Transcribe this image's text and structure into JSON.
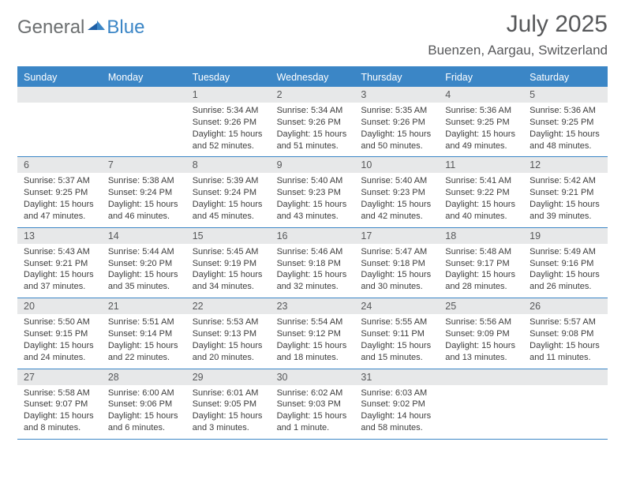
{
  "logo": {
    "text1": "General",
    "text2": "Blue"
  },
  "title": "July 2025",
  "location": "Buenzen, Aargau, Switzerland",
  "colors": {
    "header_bg": "#3b86c6",
    "header_text": "#ffffff",
    "band_bg": "#e7e8e9",
    "band_text": "#57585a",
    "body_text": "#3d3d3d",
    "rule": "#3b86c6",
    "title_text": "#57585a",
    "logo_gray": "#6c6f70",
    "logo_blue": "#3b86c6",
    "page_bg": "#ffffff"
  },
  "typography": {
    "title_fontsize": 30,
    "location_fontsize": 17,
    "header_fontsize": 12.5,
    "daynum_fontsize": 12.5,
    "body_fontsize": 11
  },
  "weekdays": [
    "Sunday",
    "Monday",
    "Tuesday",
    "Wednesday",
    "Thursday",
    "Friday",
    "Saturday"
  ],
  "weeks": [
    [
      {
        "n": "",
        "lines": []
      },
      {
        "n": "",
        "lines": []
      },
      {
        "n": "1",
        "lines": [
          "Sunrise: 5:34 AM",
          "Sunset: 9:26 PM",
          "Daylight: 15 hours",
          "and 52 minutes."
        ]
      },
      {
        "n": "2",
        "lines": [
          "Sunrise: 5:34 AM",
          "Sunset: 9:26 PM",
          "Daylight: 15 hours",
          "and 51 minutes."
        ]
      },
      {
        "n": "3",
        "lines": [
          "Sunrise: 5:35 AM",
          "Sunset: 9:26 PM",
          "Daylight: 15 hours",
          "and 50 minutes."
        ]
      },
      {
        "n": "4",
        "lines": [
          "Sunrise: 5:36 AM",
          "Sunset: 9:25 PM",
          "Daylight: 15 hours",
          "and 49 minutes."
        ]
      },
      {
        "n": "5",
        "lines": [
          "Sunrise: 5:36 AM",
          "Sunset: 9:25 PM",
          "Daylight: 15 hours",
          "and 48 minutes."
        ]
      }
    ],
    [
      {
        "n": "6",
        "lines": [
          "Sunrise: 5:37 AM",
          "Sunset: 9:25 PM",
          "Daylight: 15 hours",
          "and 47 minutes."
        ]
      },
      {
        "n": "7",
        "lines": [
          "Sunrise: 5:38 AM",
          "Sunset: 9:24 PM",
          "Daylight: 15 hours",
          "and 46 minutes."
        ]
      },
      {
        "n": "8",
        "lines": [
          "Sunrise: 5:39 AM",
          "Sunset: 9:24 PM",
          "Daylight: 15 hours",
          "and 45 minutes."
        ]
      },
      {
        "n": "9",
        "lines": [
          "Sunrise: 5:40 AM",
          "Sunset: 9:23 PM",
          "Daylight: 15 hours",
          "and 43 minutes."
        ]
      },
      {
        "n": "10",
        "lines": [
          "Sunrise: 5:40 AM",
          "Sunset: 9:23 PM",
          "Daylight: 15 hours",
          "and 42 minutes."
        ]
      },
      {
        "n": "11",
        "lines": [
          "Sunrise: 5:41 AM",
          "Sunset: 9:22 PM",
          "Daylight: 15 hours",
          "and 40 minutes."
        ]
      },
      {
        "n": "12",
        "lines": [
          "Sunrise: 5:42 AM",
          "Sunset: 9:21 PM",
          "Daylight: 15 hours",
          "and 39 minutes."
        ]
      }
    ],
    [
      {
        "n": "13",
        "lines": [
          "Sunrise: 5:43 AM",
          "Sunset: 9:21 PM",
          "Daylight: 15 hours",
          "and 37 minutes."
        ]
      },
      {
        "n": "14",
        "lines": [
          "Sunrise: 5:44 AM",
          "Sunset: 9:20 PM",
          "Daylight: 15 hours",
          "and 35 minutes."
        ]
      },
      {
        "n": "15",
        "lines": [
          "Sunrise: 5:45 AM",
          "Sunset: 9:19 PM",
          "Daylight: 15 hours",
          "and 34 minutes."
        ]
      },
      {
        "n": "16",
        "lines": [
          "Sunrise: 5:46 AM",
          "Sunset: 9:18 PM",
          "Daylight: 15 hours",
          "and 32 minutes."
        ]
      },
      {
        "n": "17",
        "lines": [
          "Sunrise: 5:47 AM",
          "Sunset: 9:18 PM",
          "Daylight: 15 hours",
          "and 30 minutes."
        ]
      },
      {
        "n": "18",
        "lines": [
          "Sunrise: 5:48 AM",
          "Sunset: 9:17 PM",
          "Daylight: 15 hours",
          "and 28 minutes."
        ]
      },
      {
        "n": "19",
        "lines": [
          "Sunrise: 5:49 AM",
          "Sunset: 9:16 PM",
          "Daylight: 15 hours",
          "and 26 minutes."
        ]
      }
    ],
    [
      {
        "n": "20",
        "lines": [
          "Sunrise: 5:50 AM",
          "Sunset: 9:15 PM",
          "Daylight: 15 hours",
          "and 24 minutes."
        ]
      },
      {
        "n": "21",
        "lines": [
          "Sunrise: 5:51 AM",
          "Sunset: 9:14 PM",
          "Daylight: 15 hours",
          "and 22 minutes."
        ]
      },
      {
        "n": "22",
        "lines": [
          "Sunrise: 5:53 AM",
          "Sunset: 9:13 PM",
          "Daylight: 15 hours",
          "and 20 minutes."
        ]
      },
      {
        "n": "23",
        "lines": [
          "Sunrise: 5:54 AM",
          "Sunset: 9:12 PM",
          "Daylight: 15 hours",
          "and 18 minutes."
        ]
      },
      {
        "n": "24",
        "lines": [
          "Sunrise: 5:55 AM",
          "Sunset: 9:11 PM",
          "Daylight: 15 hours",
          "and 15 minutes."
        ]
      },
      {
        "n": "25",
        "lines": [
          "Sunrise: 5:56 AM",
          "Sunset: 9:09 PM",
          "Daylight: 15 hours",
          "and 13 minutes."
        ]
      },
      {
        "n": "26",
        "lines": [
          "Sunrise: 5:57 AM",
          "Sunset: 9:08 PM",
          "Daylight: 15 hours",
          "and 11 minutes."
        ]
      }
    ],
    [
      {
        "n": "27",
        "lines": [
          "Sunrise: 5:58 AM",
          "Sunset: 9:07 PM",
          "Daylight: 15 hours",
          "and 8 minutes."
        ]
      },
      {
        "n": "28",
        "lines": [
          "Sunrise: 6:00 AM",
          "Sunset: 9:06 PM",
          "Daylight: 15 hours",
          "and 6 minutes."
        ]
      },
      {
        "n": "29",
        "lines": [
          "Sunrise: 6:01 AM",
          "Sunset: 9:05 PM",
          "Daylight: 15 hours",
          "and 3 minutes."
        ]
      },
      {
        "n": "30",
        "lines": [
          "Sunrise: 6:02 AM",
          "Sunset: 9:03 PM",
          "Daylight: 15 hours",
          "and 1 minute."
        ]
      },
      {
        "n": "31",
        "lines": [
          "Sunrise: 6:03 AM",
          "Sunset: 9:02 PM",
          "Daylight: 14 hours",
          "and 58 minutes."
        ]
      },
      {
        "n": "",
        "lines": []
      },
      {
        "n": "",
        "lines": []
      }
    ]
  ]
}
